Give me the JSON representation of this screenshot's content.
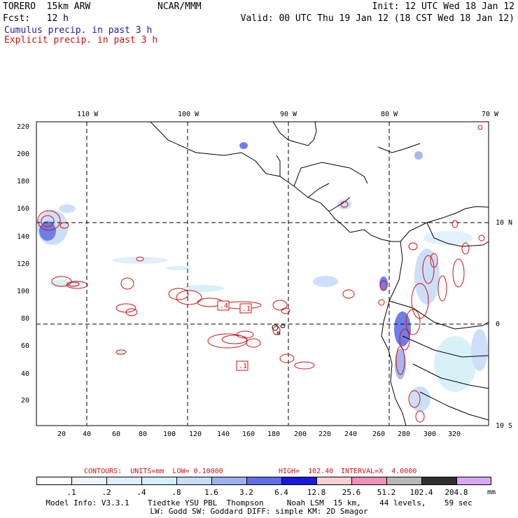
{
  "header": {
    "model": "TORERO  15km ARW",
    "center": "NCAR/MMM",
    "init": "Init: 12 UTC Wed 18 Jan 12",
    "fcst": "Fcst:   12 h",
    "valid": "Valid: 00 UTC Thu 19 Jan 12 (18 CST Wed 18 Jan 12)",
    "line_cumulus": "Cumulus precip. in past 3 h",
    "line_explicit": "Explicit precip. in past 3 h",
    "colors": {
      "cumulus": "#2020a0",
      "explicit": "#d01010"
    }
  },
  "map": {
    "lon_labels": [
      "110 W",
      "100 W",
      "90 W",
      "80 W",
      "70 W"
    ],
    "lat_labels": [
      "10 N",
      "0",
      "10 S"
    ],
    "x_ticks": [
      "20",
      "40",
      "60",
      "80",
      "100",
      "120",
      "140",
      "160",
      "180",
      "200",
      "220",
      "240",
      "260",
      "280",
      "300",
      "320"
    ],
    "y_ticks": [
      "20",
      "40",
      "60",
      "80",
      "100",
      "120",
      "140",
      "160",
      "180",
      "200",
      "220"
    ],
    "contour_labels": [
      ".4",
      ".1",
      ".1"
    ]
  },
  "contour_info": {
    "units": "CONTOURS:  UNITS=mm  LOW= 0.10000",
    "high": "HIGH=  102.40",
    "interval": "INTERVAL=X  4.0000"
  },
  "legend": {
    "ticks": [
      ".1",
      ".2",
      ".4",
      ".8",
      "1.6",
      "3.2",
      "6.4",
      "12.8",
      "25.6",
      "51.2",
      "102.4",
      "204.8"
    ],
    "unit": "mm",
    "colors": [
      "#ffffff",
      "#eef3ff",
      "#e0eeff",
      "#d4f0f8",
      "#c8dcf8",
      "#9fb0f0",
      "#6070e8",
      "#1a1ad8",
      "#f8d0d0",
      "#f090b8",
      "#b8b8b8",
      "#303030",
      "#d8a8f0"
    ]
  },
  "model_info": {
    "line1": "Model Info: V3.3.1    Tiedtke YSU PBL  Thompson     Noah LSM  15 km,    44 levels,    59 sec",
    "line2": "LW: Godd SW: Goddard DIFF: simple KM: 2D Smagor"
  }
}
